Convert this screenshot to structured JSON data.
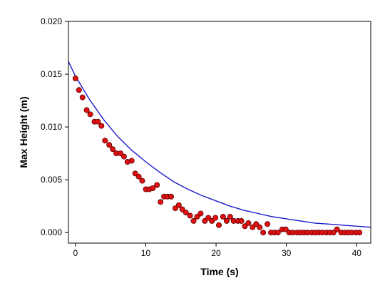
{
  "chart_data": {
    "type": "scatter",
    "title": "",
    "xlabel": "Time (s)",
    "ylabel": "Max Height (m)",
    "xlim": [
      -1,
      42
    ],
    "ylim": [
      -0.001,
      0.02
    ],
    "x_ticks": [
      0,
      10,
      20,
      30,
      40
    ],
    "x_tick_labels": [
      "0",
      "10",
      "20",
      "30",
      "40"
    ],
    "y_ticks": [
      0.0,
      0.005,
      0.01,
      0.015,
      0.02
    ],
    "y_tick_labels": [
      "0.000",
      "0.005",
      "0.010",
      "0.015",
      "0.020"
    ],
    "grid": false,
    "legend": "none",
    "colors": {
      "points": "#e01010",
      "point_edge": "#5a0000",
      "fit": "#1a1acc",
      "axis": "#000000"
    },
    "series": [
      {
        "kind": "scatter",
        "x": [
          0.0,
          0.5,
          1.0,
          1.6,
          2.1,
          2.7,
          3.2,
          3.7,
          4.2,
          4.8,
          5.3,
          5.8,
          6.4,
          6.9,
          7.4,
          8.0,
          8.5,
          9.0,
          9.5,
          10.0,
          10.5,
          11.0,
          11.6,
          12.1,
          12.6,
          13.1,
          13.6,
          14.2,
          14.7,
          15.2,
          15.7,
          16.3,
          16.8,
          17.3,
          17.8,
          18.4,
          18.9,
          19.4,
          19.9,
          20.4,
          21.0,
          21.5,
          22.0,
          22.5,
          23.1,
          23.6,
          24.1,
          24.6,
          25.2,
          25.7,
          26.2,
          26.7,
          27.3,
          27.8,
          28.3,
          28.8,
          29.4,
          29.9,
          30.4,
          30.9,
          31.5,
          32.0,
          32.5,
          33.0,
          33.6,
          34.1,
          34.6,
          35.1,
          35.7,
          36.2,
          36.7,
          37.2,
          37.8,
          38.3,
          38.8,
          39.3,
          39.9,
          40.4
        ],
        "y": [
          0.0146,
          0.0135,
          0.0128,
          0.0116,
          0.0112,
          0.0105,
          0.0105,
          0.0101,
          0.0087,
          0.0083,
          0.0079,
          0.0075,
          0.0075,
          0.0072,
          0.0067,
          0.0068,
          0.0056,
          0.0053,
          0.0049,
          0.0041,
          0.0041,
          0.0042,
          0.0045,
          0.0029,
          0.0034,
          0.0034,
          0.0034,
          0.0023,
          0.0026,
          0.0022,
          0.0019,
          0.0016,
          0.0011,
          0.0015,
          0.0018,
          0.0011,
          0.0014,
          0.0011,
          0.0014,
          0.0007,
          0.0015,
          0.0011,
          0.0015,
          0.0011,
          0.0011,
          0.0011,
          0.0006,
          0.0009,
          0.0005,
          0.0008,
          0.0005,
          0.0,
          0.0008,
          0.0,
          0.0,
          0.0,
          0.0003,
          0.0003,
          0.0,
          0.0,
          0.0,
          0.0,
          0.0,
          0.0,
          0.0,
          0.0,
          0.0,
          0.0,
          0.0,
          0.0,
          0.0,
          0.0003,
          0.0,
          0.0,
          0.0,
          0.0,
          0.0,
          0.0
        ]
      },
      {
        "kind": "fit_line",
        "x": [
          -1,
          0,
          2,
          4,
          6,
          8,
          10,
          12,
          14,
          16,
          18,
          20,
          22,
          24,
          26,
          28,
          30,
          32,
          34,
          36,
          38,
          40,
          42
        ],
        "y": [
          0.0162,
          0.0148,
          0.0126,
          0.0107,
          0.0091,
          0.0078,
          0.0067,
          0.0057,
          0.0048,
          0.0041,
          0.0035,
          0.003,
          0.0025,
          0.0021,
          0.0018,
          0.0015,
          0.0013,
          0.0011,
          0.0009,
          0.0008,
          0.0007,
          0.0006,
          0.0005
        ]
      }
    ]
  }
}
